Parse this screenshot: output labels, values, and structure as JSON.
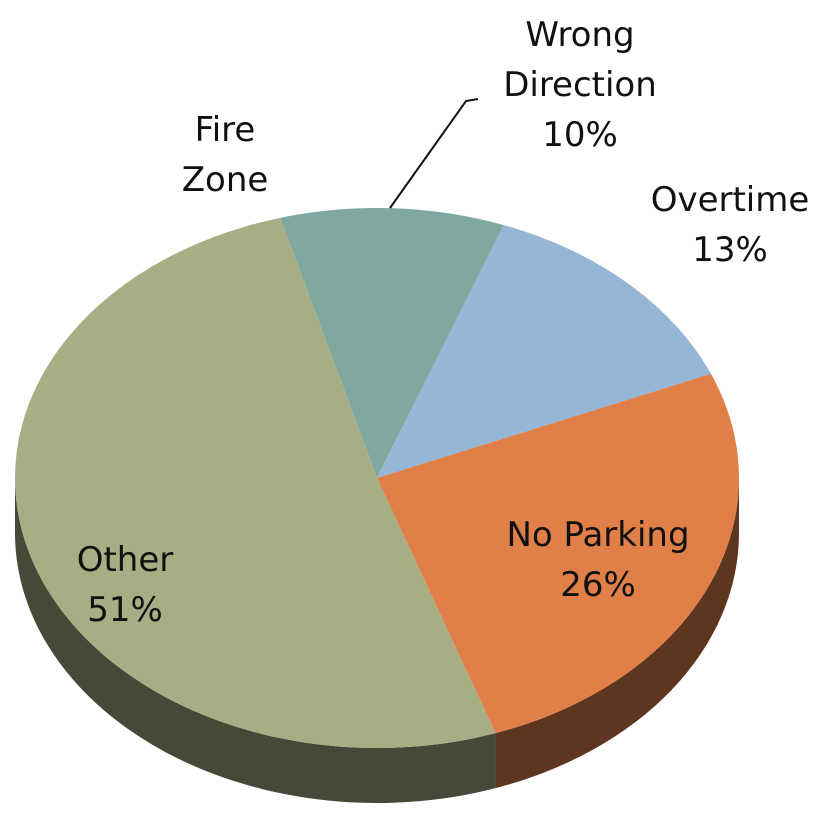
{
  "chart_data": {
    "type": "pie",
    "categories": [
      "Fire Zone",
      "Wrong Direction",
      "Overtime",
      "No Parking",
      "Other"
    ],
    "values": [
      0,
      10,
      13,
      26,
      51
    ],
    "value_labels": [
      null,
      "10%",
      "13%",
      "26%",
      "51%"
    ],
    "colors": [
      "#6f9c93",
      "#7ea8a0",
      "#95b6d4",
      "#e07f47",
      "#a7ae84"
    ]
  }
}
